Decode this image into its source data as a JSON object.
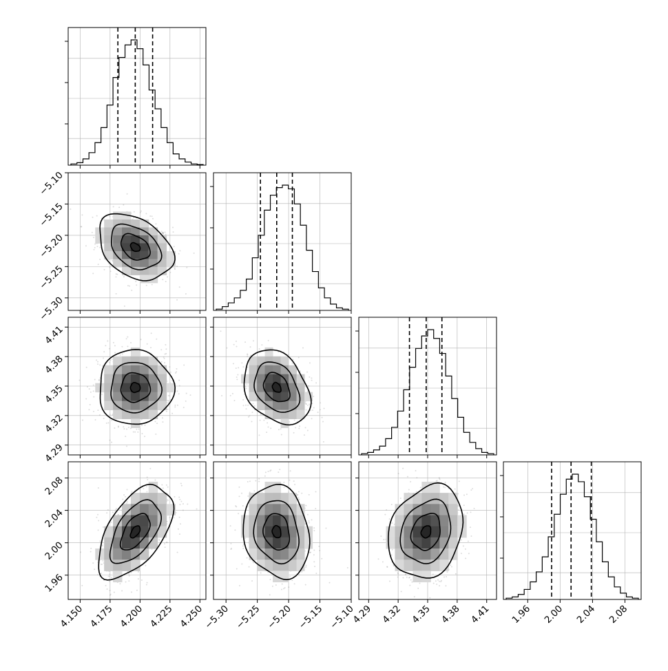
{
  "chart_data": {
    "type": "corner",
    "grid": true,
    "parameters": [
      {
        "range": [
          4.14,
          4.255
        ],
        "ticks": [
          4.15,
          4.175,
          4.2,
          4.225,
          4.25
        ],
        "tick_labels": [
          "4.150",
          "4.175",
          "4.200",
          "4.225",
          "4.250"
        ],
        "quantiles": [
          4.1815,
          4.196,
          4.2105
        ],
        "hist": [
          0.01,
          0.02,
          0.05,
          0.1,
          0.18,
          0.3,
          0.48,
          0.7,
          0.86,
          0.96,
          1.0,
          0.93,
          0.8,
          0.6,
          0.45,
          0.3,
          0.18,
          0.09,
          0.05,
          0.025,
          0.01,
          0.005
        ]
      },
      {
        "range": [
          -5.32,
          -5.1
        ],
        "ticks": [
          -5.3,
          -5.25,
          -5.2,
          -5.15,
          -5.1
        ],
        "tick_labels": [
          "−5.30",
          "−5.25",
          "−5.20",
          "−5.15",
          "−5.10"
        ],
        "quantiles": [
          -5.245,
          -5.219,
          -5.194
        ],
        "hist": [
          0.01,
          0.03,
          0.06,
          0.1,
          0.16,
          0.25,
          0.42,
          0.6,
          0.8,
          0.92,
          0.98,
          1.0,
          0.97,
          0.85,
          0.68,
          0.48,
          0.31,
          0.18,
          0.1,
          0.05,
          0.02,
          0.01
        ]
      },
      {
        "range": [
          4.28,
          4.42
        ],
        "ticks": [
          4.29,
          4.32,
          4.35,
          4.38,
          4.41
        ],
        "tick_labels": [
          "4.29",
          "4.32",
          "4.35",
          "4.38",
          "4.41"
        ],
        "quantiles": [
          4.3315,
          4.3485,
          4.3645
        ],
        "hist": [
          0.01,
          0.02,
          0.04,
          0.07,
          0.13,
          0.22,
          0.35,
          0.52,
          0.7,
          0.85,
          0.95,
          1.0,
          0.93,
          0.81,
          0.63,
          0.45,
          0.3,
          0.18,
          0.1,
          0.05,
          0.02,
          0.01
        ]
      },
      {
        "range": [
          1.93,
          2.1
        ],
        "ticks": [
          1.96,
          2.0,
          2.04,
          2.08
        ],
        "tick_labels": [
          "1.96",
          "2.00",
          "2.04",
          "2.08"
        ],
        "quantiles": [
          1.9895,
          2.0135,
          2.0385
        ],
        "hist": [
          0.01,
          0.02,
          0.04,
          0.08,
          0.14,
          0.22,
          0.34,
          0.5,
          0.68,
          0.84,
          0.96,
          1.0,
          0.94,
          0.82,
          0.64,
          0.46,
          0.3,
          0.18,
          0.1,
          0.05,
          0.02,
          0.01
        ]
      }
    ],
    "pairs": [
      {
        "x": 0,
        "y": 1,
        "mean": [
          4.196,
          -5.219
        ],
        "sd": [
          0.0135,
          0.023
        ],
        "corr": -0.35
      },
      {
        "x": 0,
        "y": 2,
        "mean": [
          4.196,
          4.3485
        ],
        "sd": [
          0.0135,
          0.0165
        ],
        "corr": 0.0
      },
      {
        "x": 1,
        "y": 2,
        "mean": [
          -5.219,
          4.3485
        ],
        "sd": [
          0.023,
          0.0165
        ],
        "corr": -0.3
      },
      {
        "x": 0,
        "y": 3,
        "mean": [
          4.196,
          2.0135
        ],
        "sd": [
          0.0135,
          0.025
        ],
        "corr": 0.55
      },
      {
        "x": 1,
        "y": 3,
        "mean": [
          -5.219,
          2.0135
        ],
        "sd": [
          0.023,
          0.025
        ],
        "corr": -0.15
      },
      {
        "x": 2,
        "y": 3,
        "mean": [
          4.3485,
          2.0135
        ],
        "sd": [
          0.0165,
          0.025
        ],
        "corr": 0.2
      }
    ],
    "colors": {
      "line": "#000000",
      "grid": "#b0b0b0",
      "scatter": "#9a9a9a",
      "background": "#ffffff"
    }
  }
}
